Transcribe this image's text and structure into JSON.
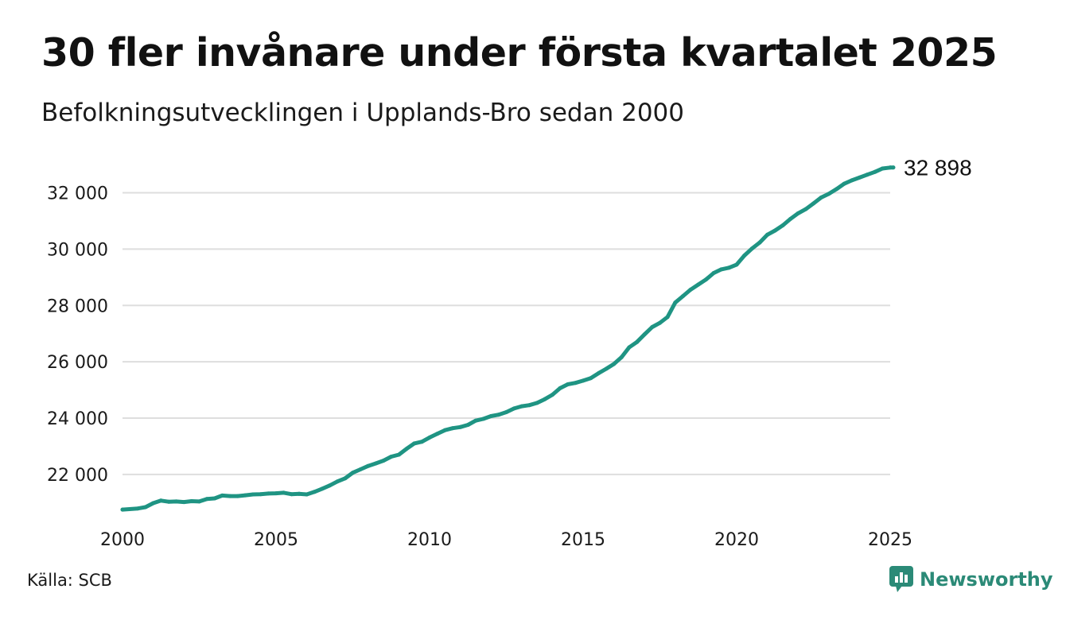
{
  "header": {
    "title": "30 fler invånare under första kvartalet 2025",
    "subtitle": "Befolkningsutvecklingen i Upplands-Bro sedan 2000"
  },
  "footer": {
    "source": "Källa: SCB",
    "brand": "Newsworthy",
    "brand_icon": "newsworthy-logo-icon"
  },
  "colors": {
    "line": "#1f9483",
    "grid": "#dedede",
    "brand": "#2b8a77"
  },
  "chart_data": {
    "type": "line",
    "title": "30 fler invånare under första kvartalet 2025",
    "subtitle": "Befolkningsutvecklingen i Upplands-Bro sedan 2000",
    "xlabel": "",
    "ylabel": "",
    "xlim": [
      2000,
      2025
    ],
    "ylim": [
      20500,
      33200
    ],
    "grid": true,
    "x_ticks": [
      {
        "value": 2000,
        "label": "2000"
      },
      {
        "value": 2005,
        "label": "2005"
      },
      {
        "value": 2010,
        "label": "2010"
      },
      {
        "value": 2015,
        "label": "2015"
      },
      {
        "value": 2020,
        "label": "2020"
      },
      {
        "value": 2025,
        "label": "2025"
      }
    ],
    "y_ticks": [
      {
        "value": 22000,
        "label": "22 000"
      },
      {
        "value": 24000,
        "label": "24 000"
      },
      {
        "value": 26000,
        "label": "26 000"
      },
      {
        "value": 28000,
        "label": "28 000"
      },
      {
        "value": 30000,
        "label": "30 000"
      },
      {
        "value": 32000,
        "label": "32 000"
      }
    ],
    "end_label": "32 898",
    "series": [
      {
        "x": [
          2000.0,
          2000.5,
          2000.75,
          2001.0,
          2001.25,
          2001.5,
          2001.75,
          2002.0,
          2002.25,
          2002.5,
          2002.75,
          2003.0,
          2003.25,
          2003.5,
          2003.75,
          2004.0,
          2004.25,
          2004.5,
          2004.75,
          2005.0,
          2005.25,
          2005.5,
          2005.75,
          2006.0,
          2006.25,
          2006.5,
          2006.75,
          2007.0,
          2007.25,
          2007.5,
          2007.75,
          2008.0,
          2008.25,
          2008.5,
          2008.75,
          2009.0,
          2009.25,
          2009.5,
          2009.75,
          2010.0,
          2010.25,
          2010.5,
          2010.75,
          2011.0,
          2011.25,
          2011.5,
          2011.75,
          2012.0,
          2012.25,
          2012.5,
          2012.75,
          2013.0,
          2013.25,
          2013.5,
          2013.75,
          2014.0,
          2014.25,
          2014.5,
          2014.75,
          2015.0,
          2015.25,
          2015.5,
          2015.75,
          2016.0,
          2016.25,
          2016.5,
          2016.75,
          2017.0,
          2017.25,
          2017.5,
          2017.75,
          2018.0,
          2018.25,
          2018.5,
          2018.75,
          2019.0,
          2019.25,
          2019.5,
          2019.75,
          2020.0,
          2020.25,
          2020.5,
          2020.75,
          2021.0,
          2021.25,
          2021.5,
          2021.75,
          2022.0,
          2022.25,
          2022.5,
          2022.75,
          2023.0,
          2023.25,
          2023.5,
          2023.75,
          2024.0,
          2024.25,
          2024.5,
          2024.75,
          2025.0,
          2025.1
        ],
        "values": [
          20750,
          20790,
          20840,
          20980,
          21070,
          21030,
          21040,
          21020,
          21050,
          21040,
          21130,
          21150,
          21250,
          21230,
          21230,
          21260,
          21290,
          21300,
          21320,
          21330,
          21350,
          21300,
          21310,
          21290,
          21380,
          21490,
          21610,
          21750,
          21860,
          22060,
          22180,
          22300,
          22390,
          22490,
          22630,
          22700,
          22910,
          23100,
          23160,
          23310,
          23440,
          23570,
          23640,
          23680,
          23760,
          23910,
          23970,
          24070,
          24120,
          24210,
          24340,
          24420,
          24460,
          24540,
          24670,
          24830,
          25060,
          25200,
          25250,
          25330,
          25420,
          25590,
          25750,
          25920,
          26160,
          26510,
          26700,
          26970,
          27230,
          27380,
          27590,
          28100,
          28330,
          28560,
          28740,
          28920,
          29150,
          29280,
          29340,
          29450,
          29770,
          30020,
          30230,
          30510,
          30660,
          30840,
          31070,
          31270,
          31420,
          31620,
          31830,
          31960,
          32130,
          32320,
          32440,
          32540,
          32640,
          32740,
          32860,
          32895,
          32898
        ]
      }
    ]
  }
}
